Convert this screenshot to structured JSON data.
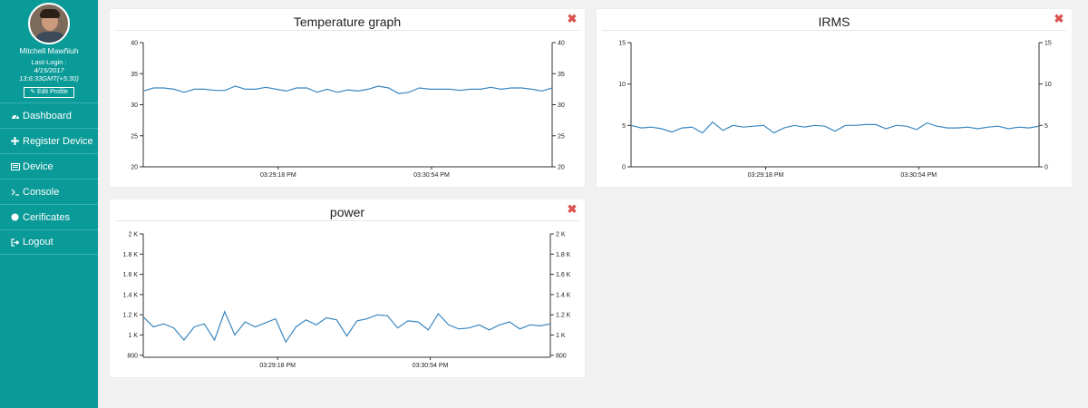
{
  "user": {
    "name": "Mitchell Mawñiuh",
    "last_login_label": "Last-Login :",
    "last_login_date": "4/15/2017",
    "last_login_time": "13:6:33GMT(+5:30)",
    "edit_profile_label": "Edit Profile"
  },
  "nav": [
    {
      "label": "Dashboard",
      "icon": "dashboard-icon"
    },
    {
      "label": "Register Device",
      "icon": "plus-icon"
    },
    {
      "label": "Device",
      "icon": "list-icon"
    },
    {
      "label": "Console",
      "icon": "terminal-icon"
    },
    {
      "label": "Cerificates",
      "icon": "circle-icon"
    },
    {
      "label": "Logout",
      "icon": "sign-out-icon"
    }
  ],
  "colors": {
    "sidebar": "#0a9a98",
    "line": "#3a87c0",
    "close": "#d9534f",
    "background": "#f1f1f1"
  },
  "panels": {
    "temperature": {
      "title": "Temperature graph"
    },
    "irms": {
      "title": "IRMS"
    },
    "power": {
      "title": "power"
    }
  },
  "chart_data": [
    {
      "type": "line",
      "title": "Temperature graph",
      "ylim": [
        20,
        40
      ],
      "yticks": [
        "20",
        "25",
        "30",
        "35",
        "40"
      ],
      "yticks_values": [
        20,
        25,
        30,
        35,
        40
      ],
      "xticks": [
        "03:29:18 PM",
        "03:30:54 PM"
      ],
      "y_axis_both_sides": true,
      "series": [
        {
          "values": [
            32.2,
            32.7,
            32.7,
            32.5,
            32.0,
            32.5,
            32.5,
            32.3,
            32.3,
            33.0,
            32.5,
            32.5,
            32.8,
            32.5,
            32.2,
            32.7,
            32.7,
            32.0,
            32.5,
            32.0,
            32.4,
            32.2,
            32.5,
            33.0,
            32.7,
            31.8,
            32.0,
            32.7,
            32.5,
            32.5,
            32.5,
            32.3,
            32.5,
            32.5,
            32.8,
            32.5,
            32.7,
            32.7,
            32.5,
            32.2,
            32.7
          ]
        }
      ]
    },
    {
      "type": "line",
      "title": "IRMS",
      "ylim": [
        0,
        15
      ],
      "yticks": [
        "0",
        "5",
        "10",
        "15"
      ],
      "yticks_values": [
        0,
        5,
        10,
        15
      ],
      "xticks": [
        "03:29:18 PM",
        "03:30:54 PM"
      ],
      "y_axis_both_sides": true,
      "series": [
        {
          "values": [
            5.0,
            4.7,
            4.8,
            4.6,
            4.2,
            4.7,
            4.8,
            4.1,
            5.4,
            4.4,
            5.0,
            4.8,
            4.9,
            5.0,
            4.1,
            4.7,
            5.0,
            4.8,
            5.0,
            4.9,
            4.3,
            5.0,
            5.0,
            5.1,
            5.1,
            4.6,
            5.0,
            4.9,
            4.5,
            5.3,
            4.9,
            4.7,
            4.7,
            4.8,
            4.6,
            4.8,
            4.9,
            4.6,
            4.8,
            4.7,
            4.9
          ]
        }
      ]
    },
    {
      "type": "line",
      "title": "power",
      "ylim": [
        780,
        2000
      ],
      "yticks": [
        "800",
        "1 K",
        "1.2 K",
        "1.4 K",
        "1.6 K",
        "1.8 K",
        "2 K"
      ],
      "yticks_values": [
        800,
        1000,
        1200,
        1400,
        1600,
        1800,
        2000
      ],
      "xticks": [
        "03:29:18 PM",
        "03:30:54 PM"
      ],
      "y_axis_both_sides": true,
      "series": [
        {
          "values": [
            1180,
            1080,
            1110,
            1070,
            950,
            1080,
            1110,
            950,
            1230,
            1000,
            1130,
            1080,
            1120,
            1160,
            930,
            1080,
            1150,
            1100,
            1170,
            1150,
            990,
            1140,
            1160,
            1200,
            1190,
            1070,
            1140,
            1130,
            1050,
            1210,
            1100,
            1060,
            1070,
            1100,
            1050,
            1100,
            1130,
            1060,
            1100,
            1090,
            1110
          ]
        }
      ]
    }
  ]
}
